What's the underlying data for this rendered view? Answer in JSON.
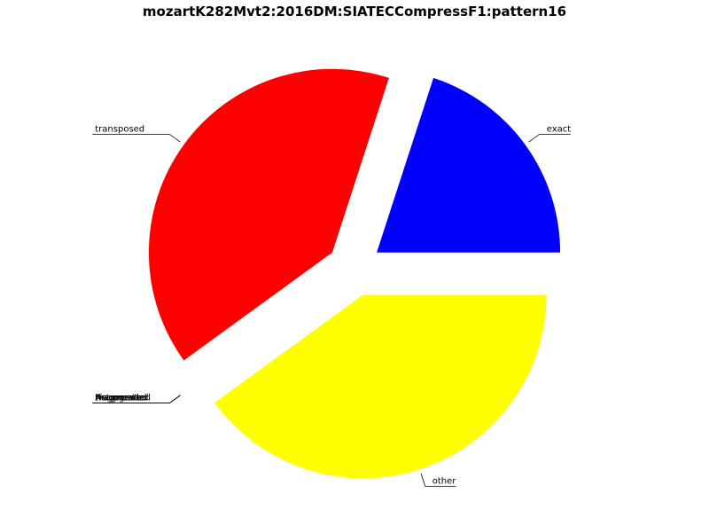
{
  "chart_data": {
    "type": "pie",
    "title": "mozartK282Mvt2:2016DM:SIATECCompressF1:pattern16",
    "slices": [
      {
        "label": "exact",
        "value": 20.0,
        "color": "#0000ff",
        "exploded": true
      },
      {
        "label": "transposed",
        "value": 40.0,
        "color": "#ff0000",
        "exploded": true
      },
      {
        "label": "tfragmented",
        "value": 0.0,
        "color": "#00ff00",
        "exploded": true
      },
      {
        "label": "Fragmented",
        "value": 0.0,
        "color": "#ff00ff",
        "exploded": true
      },
      {
        "label": "Augmented",
        "value": 0.0,
        "color": "#00ffff",
        "exploded": true
      },
      {
        "label": "Retrograde",
        "value": 0.0,
        "color": "#808080",
        "exploded": true
      },
      {
        "label": "other",
        "value": 40.0,
        "color": "#ffff00",
        "exploded": true
      }
    ],
    "start_angle_deg": 0,
    "direction": "counterclockwise",
    "legend": "none"
  }
}
